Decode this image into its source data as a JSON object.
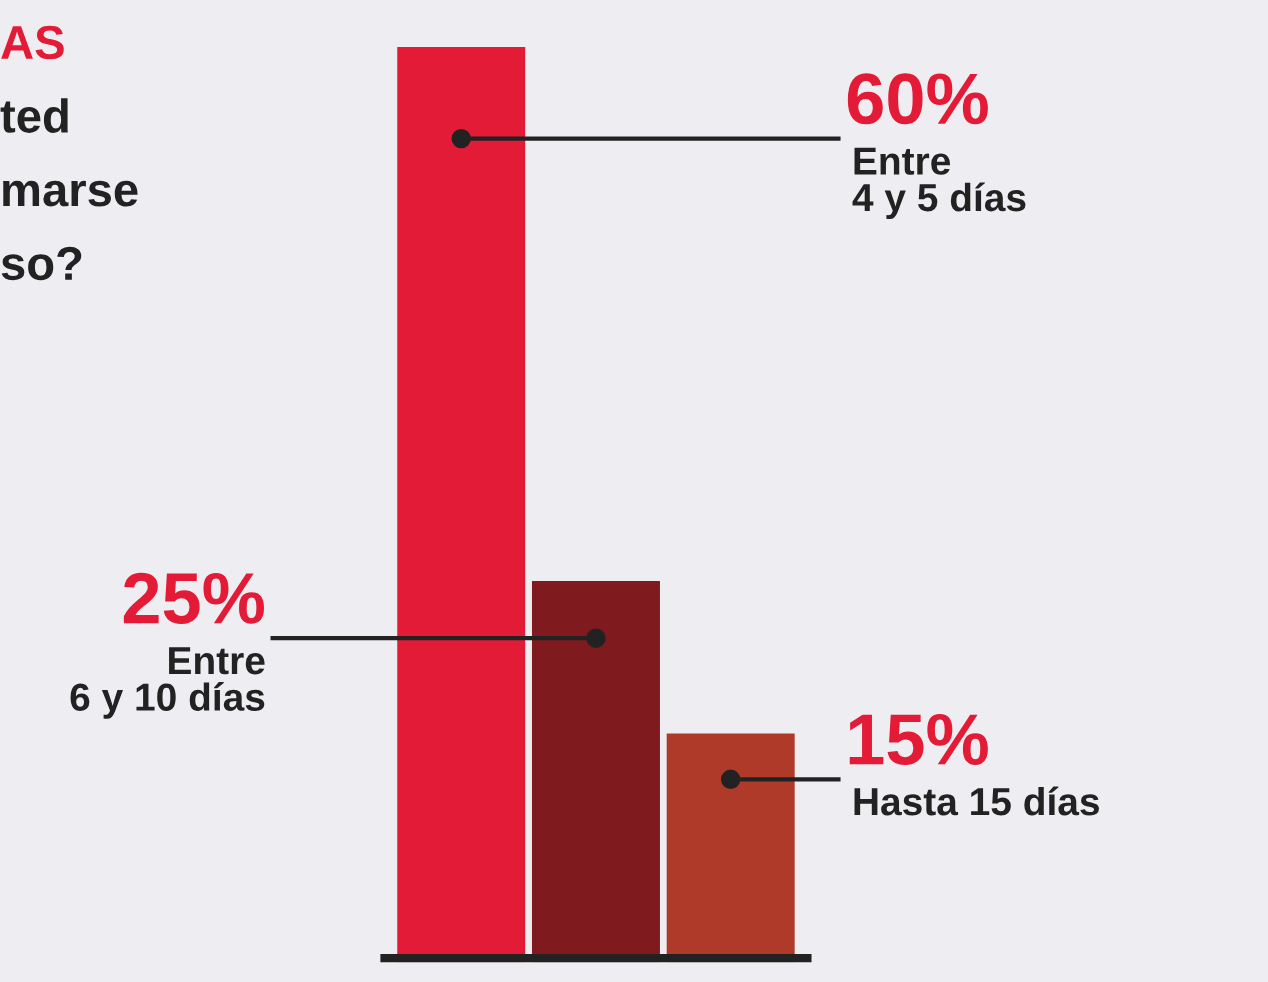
{
  "chart_data": {
    "type": "bar",
    "categories": [
      null,
      null,
      null
    ],
    "values": [
      60,
      25,
      15
    ],
    "value_labels": [
      "60%",
      "25%",
      "15%"
    ],
    "colors": [
      "#e31b36",
      "#7f1a1e",
      "#b03a2a"
    ],
    "annotations": [
      "AS",
      "ted",
      "marse",
      "so?",
      "Entre\n4 y 5 días",
      "Entre\n6 y 10 días",
      "Hasta 15 días"
    ]
  }
}
